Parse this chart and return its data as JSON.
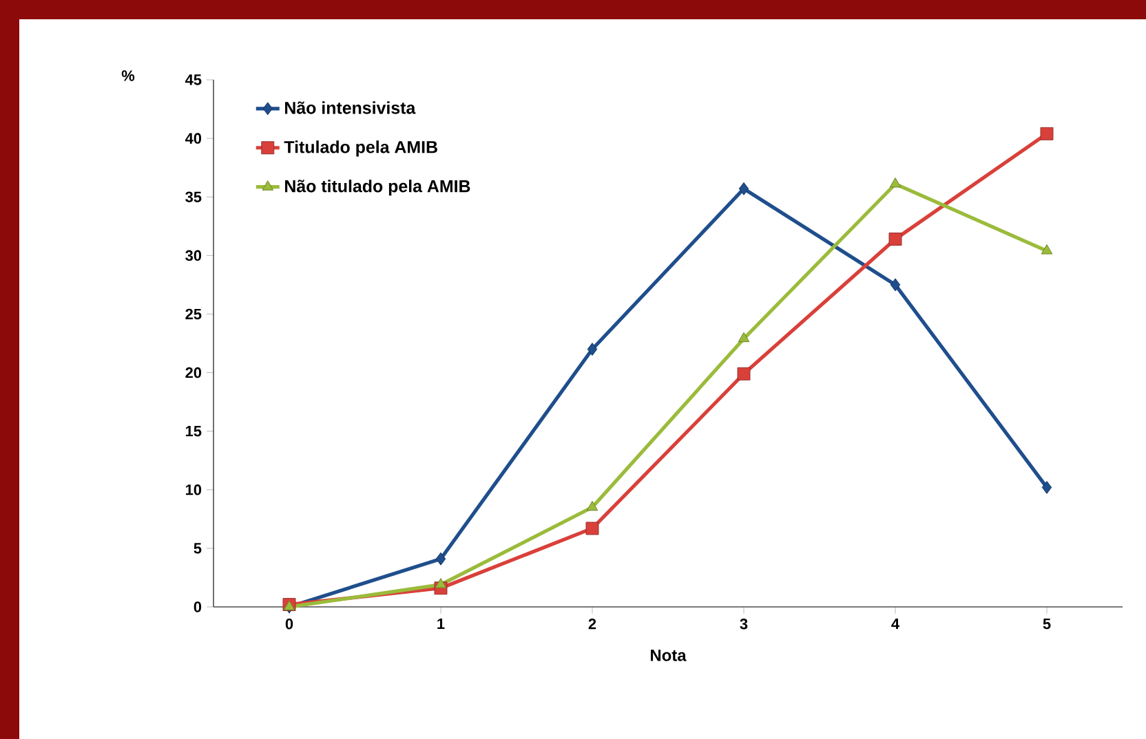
{
  "chart_data": {
    "type": "line",
    "xlabel": "Nota",
    "ylabel": "%",
    "categories": [
      "0",
      "1",
      "2",
      "3",
      "4",
      "5"
    ],
    "series": [
      {
        "name": "Não intensivista",
        "color": "#1f4e8c",
        "marker": "diamond",
        "values": [
          0,
          4.1,
          22.0,
          35.7,
          27.5,
          10.2
        ]
      },
      {
        "name": "Titulado pela AMIB",
        "color": "#d9403a",
        "marker": "square",
        "values": [
          0.2,
          1.6,
          6.7,
          19.9,
          31.4,
          40.4
        ]
      },
      {
        "name": "Não titulado pela AMIB",
        "color": "#9bbb3b",
        "marker": "triangle",
        "values": [
          0,
          1.9,
          8.5,
          22.9,
          36.1,
          30.4
        ]
      }
    ],
    "ylim": [
      0,
      45
    ],
    "yticks": [
      0,
      5,
      10,
      15,
      20,
      25,
      30,
      35,
      40,
      45
    ],
    "grid": false,
    "legend": "top left",
    "line_style": "solid"
  }
}
